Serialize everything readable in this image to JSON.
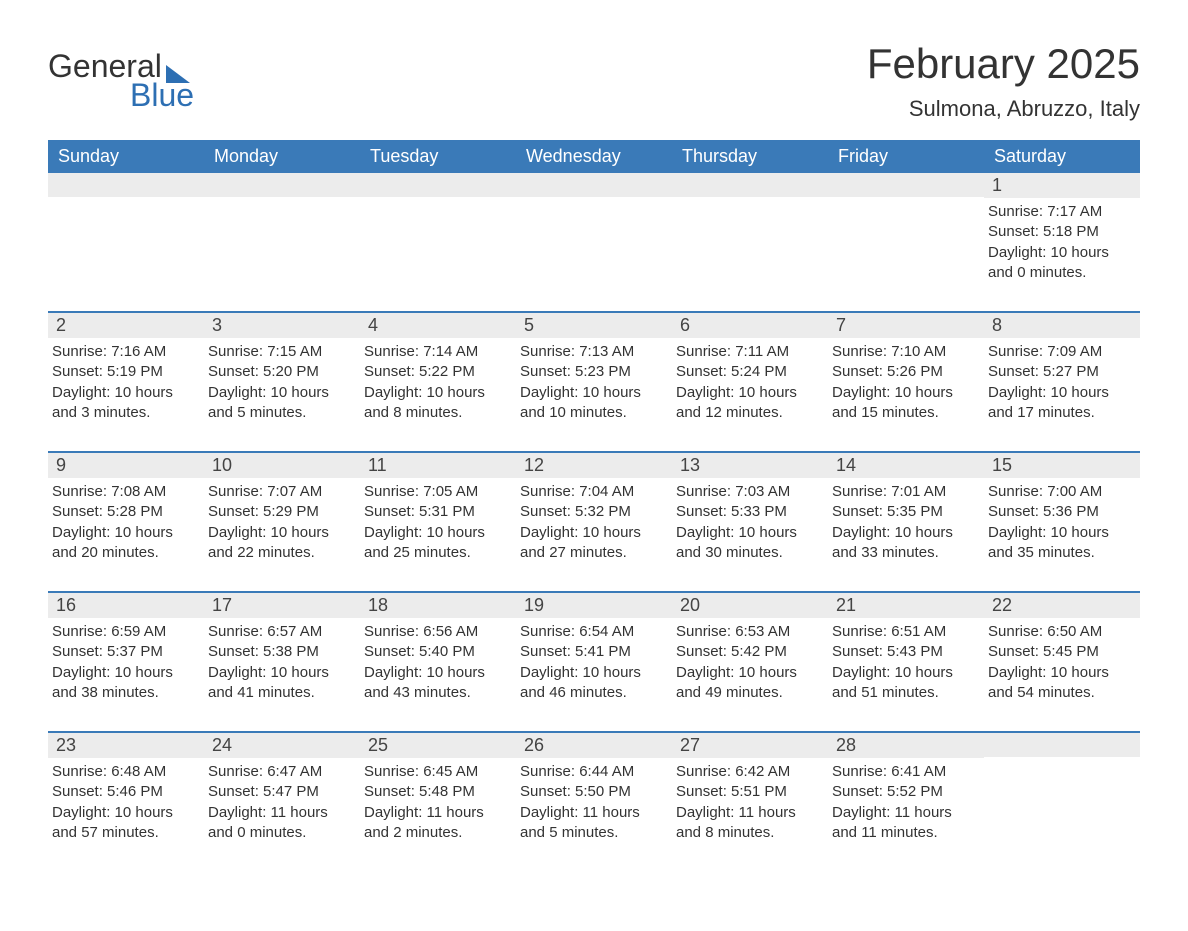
{
  "brand": {
    "general": "General",
    "blue": "Blue"
  },
  "title": "February 2025",
  "location": "Sulmona, Abruzzo, Italy",
  "colors": {
    "header_bg": "#3a7ab8",
    "header_text": "#ffffff",
    "daynum_bg": "#ececec",
    "rule": "#3a7ab8",
    "brand_blue": "#2d6fb3",
    "text": "#333333",
    "page_bg": "#ffffff"
  },
  "day_labels": [
    "Sunday",
    "Monday",
    "Tuesday",
    "Wednesday",
    "Thursday",
    "Friday",
    "Saturday"
  ],
  "weeks": [
    [
      {
        "blank": true
      },
      {
        "blank": true
      },
      {
        "blank": true
      },
      {
        "blank": true
      },
      {
        "blank": true
      },
      {
        "blank": true
      },
      {
        "n": "1",
        "sunrise": "Sunrise: 7:17 AM",
        "sunset": "Sunset: 5:18 PM",
        "day": "Daylight: 10 hours and 0 minutes."
      }
    ],
    [
      {
        "n": "2",
        "sunrise": "Sunrise: 7:16 AM",
        "sunset": "Sunset: 5:19 PM",
        "day": "Daylight: 10 hours and 3 minutes."
      },
      {
        "n": "3",
        "sunrise": "Sunrise: 7:15 AM",
        "sunset": "Sunset: 5:20 PM",
        "day": "Daylight: 10 hours and 5 minutes."
      },
      {
        "n": "4",
        "sunrise": "Sunrise: 7:14 AM",
        "sunset": "Sunset: 5:22 PM",
        "day": "Daylight: 10 hours and 8 minutes."
      },
      {
        "n": "5",
        "sunrise": "Sunrise: 7:13 AM",
        "sunset": "Sunset: 5:23 PM",
        "day": "Daylight: 10 hours and 10 minutes."
      },
      {
        "n": "6",
        "sunrise": "Sunrise: 7:11 AM",
        "sunset": "Sunset: 5:24 PM",
        "day": "Daylight: 10 hours and 12 minutes."
      },
      {
        "n": "7",
        "sunrise": "Sunrise: 7:10 AM",
        "sunset": "Sunset: 5:26 PM",
        "day": "Daylight: 10 hours and 15 minutes."
      },
      {
        "n": "8",
        "sunrise": "Sunrise: 7:09 AM",
        "sunset": "Sunset: 5:27 PM",
        "day": "Daylight: 10 hours and 17 minutes."
      }
    ],
    [
      {
        "n": "9",
        "sunrise": "Sunrise: 7:08 AM",
        "sunset": "Sunset: 5:28 PM",
        "day": "Daylight: 10 hours and 20 minutes."
      },
      {
        "n": "10",
        "sunrise": "Sunrise: 7:07 AM",
        "sunset": "Sunset: 5:29 PM",
        "day": "Daylight: 10 hours and 22 minutes."
      },
      {
        "n": "11",
        "sunrise": "Sunrise: 7:05 AM",
        "sunset": "Sunset: 5:31 PM",
        "day": "Daylight: 10 hours and 25 minutes."
      },
      {
        "n": "12",
        "sunrise": "Sunrise: 7:04 AM",
        "sunset": "Sunset: 5:32 PM",
        "day": "Daylight: 10 hours and 27 minutes."
      },
      {
        "n": "13",
        "sunrise": "Sunrise: 7:03 AM",
        "sunset": "Sunset: 5:33 PM",
        "day": "Daylight: 10 hours and 30 minutes."
      },
      {
        "n": "14",
        "sunrise": "Sunrise: 7:01 AM",
        "sunset": "Sunset: 5:35 PM",
        "day": "Daylight: 10 hours and 33 minutes."
      },
      {
        "n": "15",
        "sunrise": "Sunrise: 7:00 AM",
        "sunset": "Sunset: 5:36 PM",
        "day": "Daylight: 10 hours and 35 minutes."
      }
    ],
    [
      {
        "n": "16",
        "sunrise": "Sunrise: 6:59 AM",
        "sunset": "Sunset: 5:37 PM",
        "day": "Daylight: 10 hours and 38 minutes."
      },
      {
        "n": "17",
        "sunrise": "Sunrise: 6:57 AM",
        "sunset": "Sunset: 5:38 PM",
        "day": "Daylight: 10 hours and 41 minutes."
      },
      {
        "n": "18",
        "sunrise": "Sunrise: 6:56 AM",
        "sunset": "Sunset: 5:40 PM",
        "day": "Daylight: 10 hours and 43 minutes."
      },
      {
        "n": "19",
        "sunrise": "Sunrise: 6:54 AM",
        "sunset": "Sunset: 5:41 PM",
        "day": "Daylight: 10 hours and 46 minutes."
      },
      {
        "n": "20",
        "sunrise": "Sunrise: 6:53 AM",
        "sunset": "Sunset: 5:42 PM",
        "day": "Daylight: 10 hours and 49 minutes."
      },
      {
        "n": "21",
        "sunrise": "Sunrise: 6:51 AM",
        "sunset": "Sunset: 5:43 PM",
        "day": "Daylight: 10 hours and 51 minutes."
      },
      {
        "n": "22",
        "sunrise": "Sunrise: 6:50 AM",
        "sunset": "Sunset: 5:45 PM",
        "day": "Daylight: 10 hours and 54 minutes."
      }
    ],
    [
      {
        "n": "23",
        "sunrise": "Sunrise: 6:48 AM",
        "sunset": "Sunset: 5:46 PM",
        "day": "Daylight: 10 hours and 57 minutes."
      },
      {
        "n": "24",
        "sunrise": "Sunrise: 6:47 AM",
        "sunset": "Sunset: 5:47 PM",
        "day": "Daylight: 11 hours and 0 minutes."
      },
      {
        "n": "25",
        "sunrise": "Sunrise: 6:45 AM",
        "sunset": "Sunset: 5:48 PM",
        "day": "Daylight: 11 hours and 2 minutes."
      },
      {
        "n": "26",
        "sunrise": "Sunrise: 6:44 AM",
        "sunset": "Sunset: 5:50 PM",
        "day": "Daylight: 11 hours and 5 minutes."
      },
      {
        "n": "27",
        "sunrise": "Sunrise: 6:42 AM",
        "sunset": "Sunset: 5:51 PM",
        "day": "Daylight: 11 hours and 8 minutes."
      },
      {
        "n": "28",
        "sunrise": "Sunrise: 6:41 AM",
        "sunset": "Sunset: 5:52 PM",
        "day": "Daylight: 11 hours and 11 minutes."
      },
      {
        "blank": true
      }
    ]
  ]
}
